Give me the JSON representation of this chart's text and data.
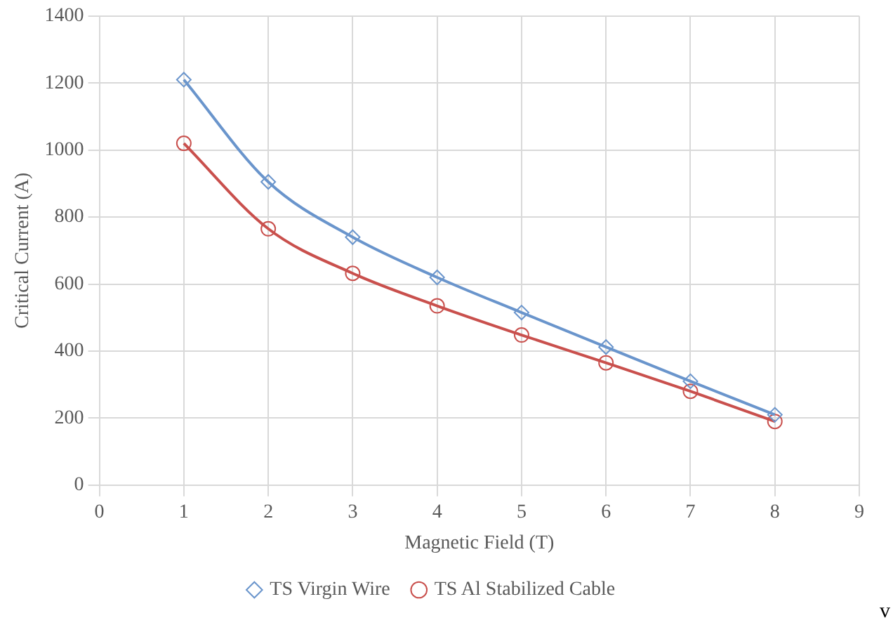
{
  "chart_data": {
    "type": "line",
    "xlabel": "Magnetic Field (T)",
    "ylabel": "Critical Current (A)",
    "x": [
      1,
      2,
      3,
      4,
      5,
      6,
      7,
      8
    ],
    "series": [
      {
        "name": "TS Virgin Wire",
        "color": "#6a95cc",
        "marker": "diamond",
        "values": [
          1210,
          905,
          740,
          620,
          515,
          412,
          310,
          210
        ]
      },
      {
        "name": "TS Al Stabilized Cable",
        "color": "#c9504d",
        "marker": "circle",
        "values": [
          1020,
          765,
          632,
          535,
          448,
          365,
          280,
          190
        ]
      }
    ],
    "xlim": [
      0,
      9
    ],
    "xticks": [
      0,
      1,
      2,
      3,
      4,
      5,
      6,
      7,
      8,
      9
    ],
    "ylim": [
      0,
      1400
    ],
    "yticks": [
      0,
      200,
      400,
      600,
      800,
      1000,
      1200,
      1400
    ],
    "grid": true,
    "legend": "bottom",
    "line_style": "solid",
    "annotations": [
      "v"
    ]
  }
}
